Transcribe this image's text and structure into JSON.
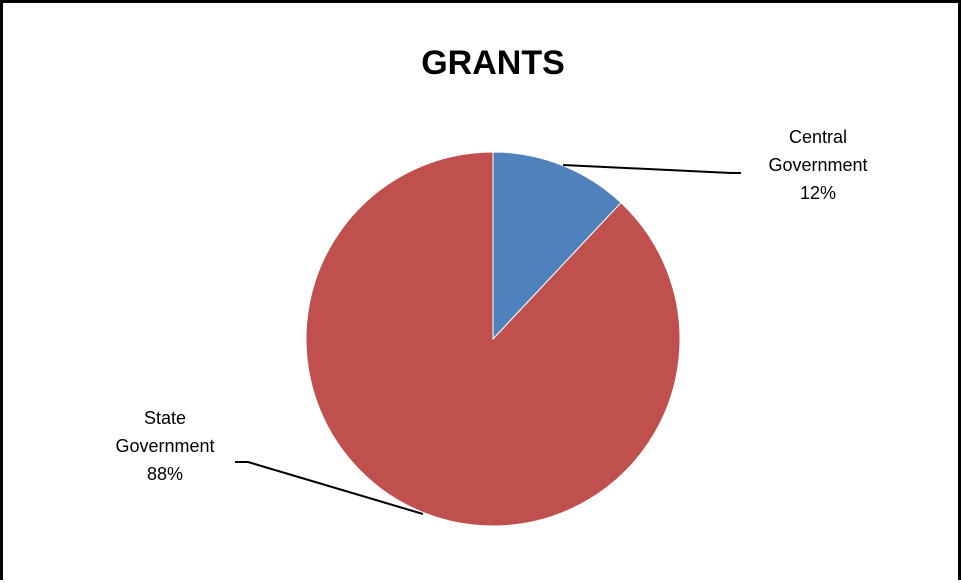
{
  "chart_data": {
    "type": "pie",
    "title": "GRANTS",
    "slices": [
      {
        "label_lines": [
          "Central",
          "Government"
        ],
        "percent_label": "12%",
        "value": 12,
        "color": "#4f81bd"
      },
      {
        "label_lines": [
          "State",
          "Government"
        ],
        "percent_label": "88%",
        "value": 88,
        "color": "#c0504d"
      }
    ],
    "start_angle": "12 o'clock",
    "direction": "clockwise",
    "legend": "none"
  }
}
